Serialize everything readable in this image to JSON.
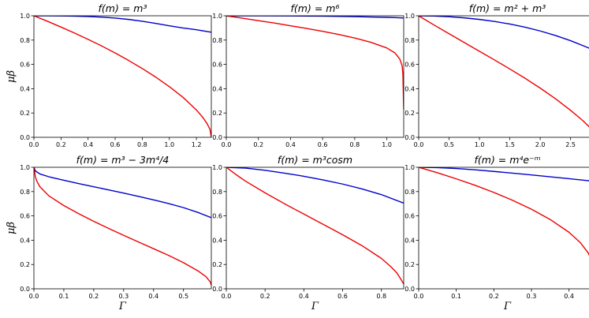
{
  "chart_data": [
    {
      "type": "line",
      "title": "f(m) = m³",
      "xlabel": "",
      "ylabel": "μβ",
      "xlim": [
        0,
        1.31
      ],
      "ylim": [
        0,
        1.0
      ],
      "xticks": [
        "0.0",
        "0.2",
        "0.4",
        "0.6",
        "0.8",
        "1.0",
        "1.2"
      ],
      "xtick_values": [
        0,
        0.2,
        0.4,
        0.6,
        0.8,
        1.0,
        1.2
      ],
      "yticks": [
        "0.0",
        "0.2",
        "0.4",
        "0.6",
        "0.8",
        "1.0"
      ],
      "ytick_values": [
        0,
        0.2,
        0.4,
        0.6,
        0.8,
        1.0
      ],
      "series": [
        {
          "color": "#0000cc",
          "x": [
            0,
            0.1,
            0.2,
            0.3,
            0.4,
            0.5,
            0.6,
            0.7,
            0.8,
            0.9,
            1.0,
            1.1,
            1.2,
            1.31
          ],
          "y": [
            1.0,
            1.0,
            0.999,
            0.997,
            0.994,
            0.989,
            0.981,
            0.97,
            0.955,
            0.937,
            0.918,
            0.9,
            0.885,
            0.865
          ]
        },
        {
          "color": "#ee0000",
          "x": [
            0,
            0.1,
            0.2,
            0.3,
            0.4,
            0.5,
            0.6,
            0.7,
            0.8,
            0.9,
            1.0,
            1.1,
            1.2,
            1.25,
            1.28,
            1.3,
            1.31
          ],
          "y": [
            1.0,
            0.955,
            0.907,
            0.858,
            0.806,
            0.752,
            0.694,
            0.632,
            0.566,
            0.495,
            0.417,
            0.33,
            0.225,
            0.16,
            0.11,
            0.065,
            0.0
          ]
        }
      ]
    },
    {
      "type": "line",
      "title": "f(m) = m⁶",
      "xlabel": "",
      "ylabel": "",
      "xlim": [
        0,
        1.105
      ],
      "ylim": [
        0,
        1.0
      ],
      "xticks": [
        "0.0",
        "0.2",
        "0.4",
        "0.6",
        "0.8",
        "1.0"
      ],
      "xtick_values": [
        0,
        0.2,
        0.4,
        0.6,
        0.8,
        1.0
      ],
      "yticks": [
        "0.0",
        "0.2",
        "0.4",
        "0.6",
        "0.8",
        "1.0"
      ],
      "ytick_values": [
        0,
        0.2,
        0.4,
        0.6,
        0.8,
        1.0
      ],
      "series": [
        {
          "color": "#0000cc",
          "x": [
            0,
            0.2,
            0.4,
            0.6,
            0.8,
            0.9,
            1.0,
            1.05,
            1.105
          ],
          "y": [
            1.0,
            1.0,
            0.999,
            0.997,
            0.993,
            0.99,
            0.987,
            0.985,
            0.982
          ]
        },
        {
          "color": "#ee0000",
          "x": [
            0,
            0.1,
            0.2,
            0.3,
            0.4,
            0.5,
            0.6,
            0.7,
            0.8,
            0.9,
            1.0,
            1.05,
            1.08,
            1.095,
            1.1,
            1.105
          ],
          "y": [
            1.0,
            0.98,
            0.96,
            0.94,
            0.918,
            0.896,
            0.872,
            0.846,
            0.817,
            0.782,
            0.735,
            0.695,
            0.645,
            0.59,
            0.52,
            0.23
          ]
        }
      ]
    },
    {
      "type": "line",
      "title": "f(m) = m² + m³",
      "xlabel": "",
      "ylabel": "",
      "xlim": [
        0,
        2.92
      ],
      "ylim": [
        0,
        1.0
      ],
      "xticks": [
        "0.0",
        "0.5",
        "1.0",
        "1.5",
        "2.0",
        "2.5"
      ],
      "xtick_values": [
        0,
        0.5,
        1.0,
        1.5,
        2.0,
        2.5
      ],
      "yticks": [
        "0.0",
        "0.2",
        "0.4",
        "0.6",
        "0.8",
        "1.0"
      ],
      "ytick_values": [
        0,
        0.2,
        0.4,
        0.6,
        0.8,
        1.0
      ],
      "series": [
        {
          "color": "#0000cc",
          "x": [
            0,
            0.25,
            0.5,
            0.75,
            1.0,
            1.25,
            1.5,
            1.75,
            2.0,
            2.25,
            2.5,
            2.75,
            2.92
          ],
          "y": [
            1.0,
            0.998,
            0.992,
            0.983,
            0.97,
            0.953,
            0.932,
            0.906,
            0.875,
            0.838,
            0.795,
            0.745,
            0.71
          ]
        },
        {
          "color": "#ee0000",
          "x": [
            0,
            0.25,
            0.5,
            0.75,
            1.0,
            1.25,
            1.5,
            1.75,
            2.0,
            2.25,
            2.5,
            2.7,
            2.8,
            2.87,
            2.92
          ],
          "y": [
            1.0,
            0.925,
            0.852,
            0.78,
            0.708,
            0.636,
            0.562,
            0.486,
            0.405,
            0.318,
            0.222,
            0.138,
            0.09,
            0.05,
            0.0
          ]
        }
      ]
    },
    {
      "type": "line",
      "title": "f(m) = m³ − 3m⁴/4",
      "xlabel": "Γ",
      "ylabel": "μβ",
      "xlim": [
        0,
        0.593
      ],
      "ylim": [
        0,
        1.0
      ],
      "xticks": [
        "0.0",
        "0.1",
        "0.2",
        "0.3",
        "0.4",
        "0.5"
      ],
      "xtick_values": [
        0,
        0.1,
        0.2,
        0.3,
        0.4,
        0.5
      ],
      "yticks": [
        "0.0",
        "0.2",
        "0.4",
        "0.6",
        "0.8",
        "1.0"
      ],
      "ytick_values": [
        0,
        0.2,
        0.4,
        0.6,
        0.8,
        1.0
      ],
      "series": [
        {
          "color": "#0000cc",
          "x": [
            0,
            0.005,
            0.02,
            0.05,
            0.1,
            0.15,
            0.2,
            0.25,
            0.3,
            0.35,
            0.4,
            0.45,
            0.5,
            0.55,
            0.593
          ],
          "y": [
            1.0,
            0.97,
            0.945,
            0.922,
            0.893,
            0.866,
            0.84,
            0.814,
            0.788,
            0.76,
            0.732,
            0.702,
            0.668,
            0.627,
            0.585
          ]
        },
        {
          "color": "#ee0000",
          "x": [
            0,
            0.005,
            0.01,
            0.02,
            0.05,
            0.1,
            0.15,
            0.2,
            0.25,
            0.3,
            0.35,
            0.4,
            0.45,
            0.5,
            0.55,
            0.575,
            0.59,
            0.593
          ],
          "y": [
            1.0,
            0.92,
            0.885,
            0.84,
            0.765,
            0.685,
            0.618,
            0.555,
            0.497,
            0.44,
            0.385,
            0.33,
            0.275,
            0.215,
            0.145,
            0.1,
            0.055,
            0.03
          ]
        }
      ]
    },
    {
      "type": "line",
      "title": "f(m) = m³cosm",
      "xlabel": "Γ",
      "ylabel": "",
      "xlim": [
        0,
        0.915
      ],
      "ylim": [
        0,
        1.0
      ],
      "xticks": [
        "0.0",
        "0.2",
        "0.4",
        "0.6",
        "0.8"
      ],
      "xtick_values": [
        0,
        0.2,
        0.4,
        0.6,
        0.8
      ],
      "yticks": [
        "0.0",
        "0.2",
        "0.4",
        "0.6",
        "0.8",
        "1.0"
      ],
      "ytick_values": [
        0,
        0.2,
        0.4,
        0.6,
        0.8,
        1.0
      ],
      "series": [
        {
          "color": "#0000cc",
          "x": [
            0,
            0.1,
            0.2,
            0.3,
            0.4,
            0.5,
            0.6,
            0.7,
            0.8,
            0.915
          ],
          "y": [
            1.0,
            0.993,
            0.975,
            0.952,
            0.926,
            0.896,
            0.862,
            0.822,
            0.775,
            0.705
          ]
        },
        {
          "color": "#ee0000",
          "x": [
            0,
            0.05,
            0.1,
            0.2,
            0.3,
            0.4,
            0.5,
            0.6,
            0.7,
            0.8,
            0.85,
            0.88,
            0.9,
            0.915
          ],
          "y": [
            1.0,
            0.94,
            0.885,
            0.79,
            0.7,
            0.615,
            0.53,
            0.445,
            0.355,
            0.25,
            0.18,
            0.13,
            0.08,
            0.04
          ]
        }
      ]
    },
    {
      "type": "line",
      "title": "f(m) = m⁴e⁻ᵐ",
      "xlabel": "Γ",
      "ylabel": "",
      "xlim": [
        0,
        0.472
      ],
      "ylim": [
        0,
        1.0
      ],
      "xticks": [
        "0.0",
        "0.1",
        "0.2",
        "0.3",
        "0.4"
      ],
      "xtick_values": [
        0,
        0.1,
        0.2,
        0.3,
        0.4
      ],
      "yticks": [
        "0.0",
        "0.2",
        "0.4",
        "0.6",
        "0.8",
        "1.0"
      ],
      "ytick_values": [
        0,
        0.2,
        0.4,
        0.6,
        0.8,
        1.0
      ],
      "series": [
        {
          "color": "#0000cc",
          "x": [
            0,
            0.05,
            0.1,
            0.15,
            0.2,
            0.25,
            0.3,
            0.35,
            0.4,
            0.45,
            0.472
          ],
          "y": [
            1.0,
            0.997,
            0.99,
            0.979,
            0.966,
            0.952,
            0.937,
            0.922,
            0.906,
            0.89,
            0.882
          ]
        },
        {
          "color": "#ee0000",
          "x": [
            0,
            0.05,
            0.1,
            0.15,
            0.2,
            0.25,
            0.3,
            0.35,
            0.4,
            0.43,
            0.45,
            0.46,
            0.468,
            0.472
          ],
          "y": [
            1.0,
            0.955,
            0.905,
            0.852,
            0.793,
            0.728,
            0.655,
            0.57,
            0.465,
            0.38,
            0.3,
            0.24,
            0.16,
            0.05
          ]
        }
      ]
    }
  ]
}
